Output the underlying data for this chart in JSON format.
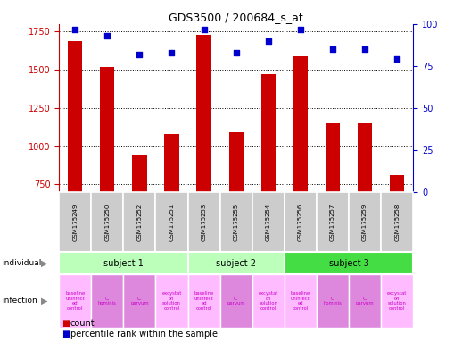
{
  "title": "GDS3500 / 200684_s_at",
  "samples": [
    "GSM175249",
    "GSM175250",
    "GSM175252",
    "GSM175251",
    "GSM175253",
    "GSM175255",
    "GSM175254",
    "GSM175256",
    "GSM175257",
    "GSM175259",
    "GSM175258"
  ],
  "counts": [
    1690,
    1520,
    940,
    1080,
    1730,
    1090,
    1470,
    1590,
    1150,
    1150,
    810
  ],
  "percentile_ranks": [
    97,
    93,
    82,
    83,
    97,
    83,
    90,
    97,
    85,
    85,
    79
  ],
  "ylim_left": [
    700,
    1800
  ],
  "ylim_right": [
    0,
    100
  ],
  "yticks_left": [
    750,
    1000,
    1250,
    1500,
    1750
  ],
  "yticks_right": [
    0,
    25,
    50,
    75,
    100
  ],
  "bar_color": "#cc0000",
  "dot_color": "#0000cc",
  "bar_width": 0.45,
  "subj_ranges": [
    [
      0,
      3,
      "subject 1",
      "#bbffbb"
    ],
    [
      4,
      6,
      "subject 2",
      "#bbffbb"
    ],
    [
      7,
      10,
      "subject 3",
      "#44dd44"
    ]
  ],
  "infections": [
    {
      "label": "baseline\nuninfect\ned\ncontrol",
      "idx": 0,
      "color": "#ffbbff"
    },
    {
      "label": "C.\nhominis",
      "idx": 1,
      "color": "#dd88dd"
    },
    {
      "label": "C.\nparvum",
      "idx": 2,
      "color": "#dd88dd"
    },
    {
      "label": "excystat\non\nsolution\ncontrol",
      "idx": 3,
      "color": "#ffbbff"
    },
    {
      "label": "baseline\nuninfect\ned\ncontrol",
      "idx": 4,
      "color": "#ffbbff"
    },
    {
      "label": "C.\nparvum",
      "idx": 5,
      "color": "#dd88dd"
    },
    {
      "label": "excystat\non\nsolution\ncontrol",
      "idx": 6,
      "color": "#ffbbff"
    },
    {
      "label": "baseline\nuninfect\ned\ncontrol",
      "idx": 7,
      "color": "#ffbbff"
    },
    {
      "label": "C.\nhominis",
      "idx": 8,
      "color": "#dd88dd"
    },
    {
      "label": "C.\nparvum",
      "idx": 9,
      "color": "#dd88dd"
    },
    {
      "label": "excystat\non\nsolution\ncontrol",
      "idx": 10,
      "color": "#ffbbff"
    }
  ],
  "tick_color_left": "#cc0000",
  "tick_color_right": "#0000cc",
  "sample_bg_color": "#cccccc",
  "grid_color": "black",
  "background_color": "white",
  "legend_count_color": "#cc0000",
  "legend_pct_color": "#0000cc"
}
